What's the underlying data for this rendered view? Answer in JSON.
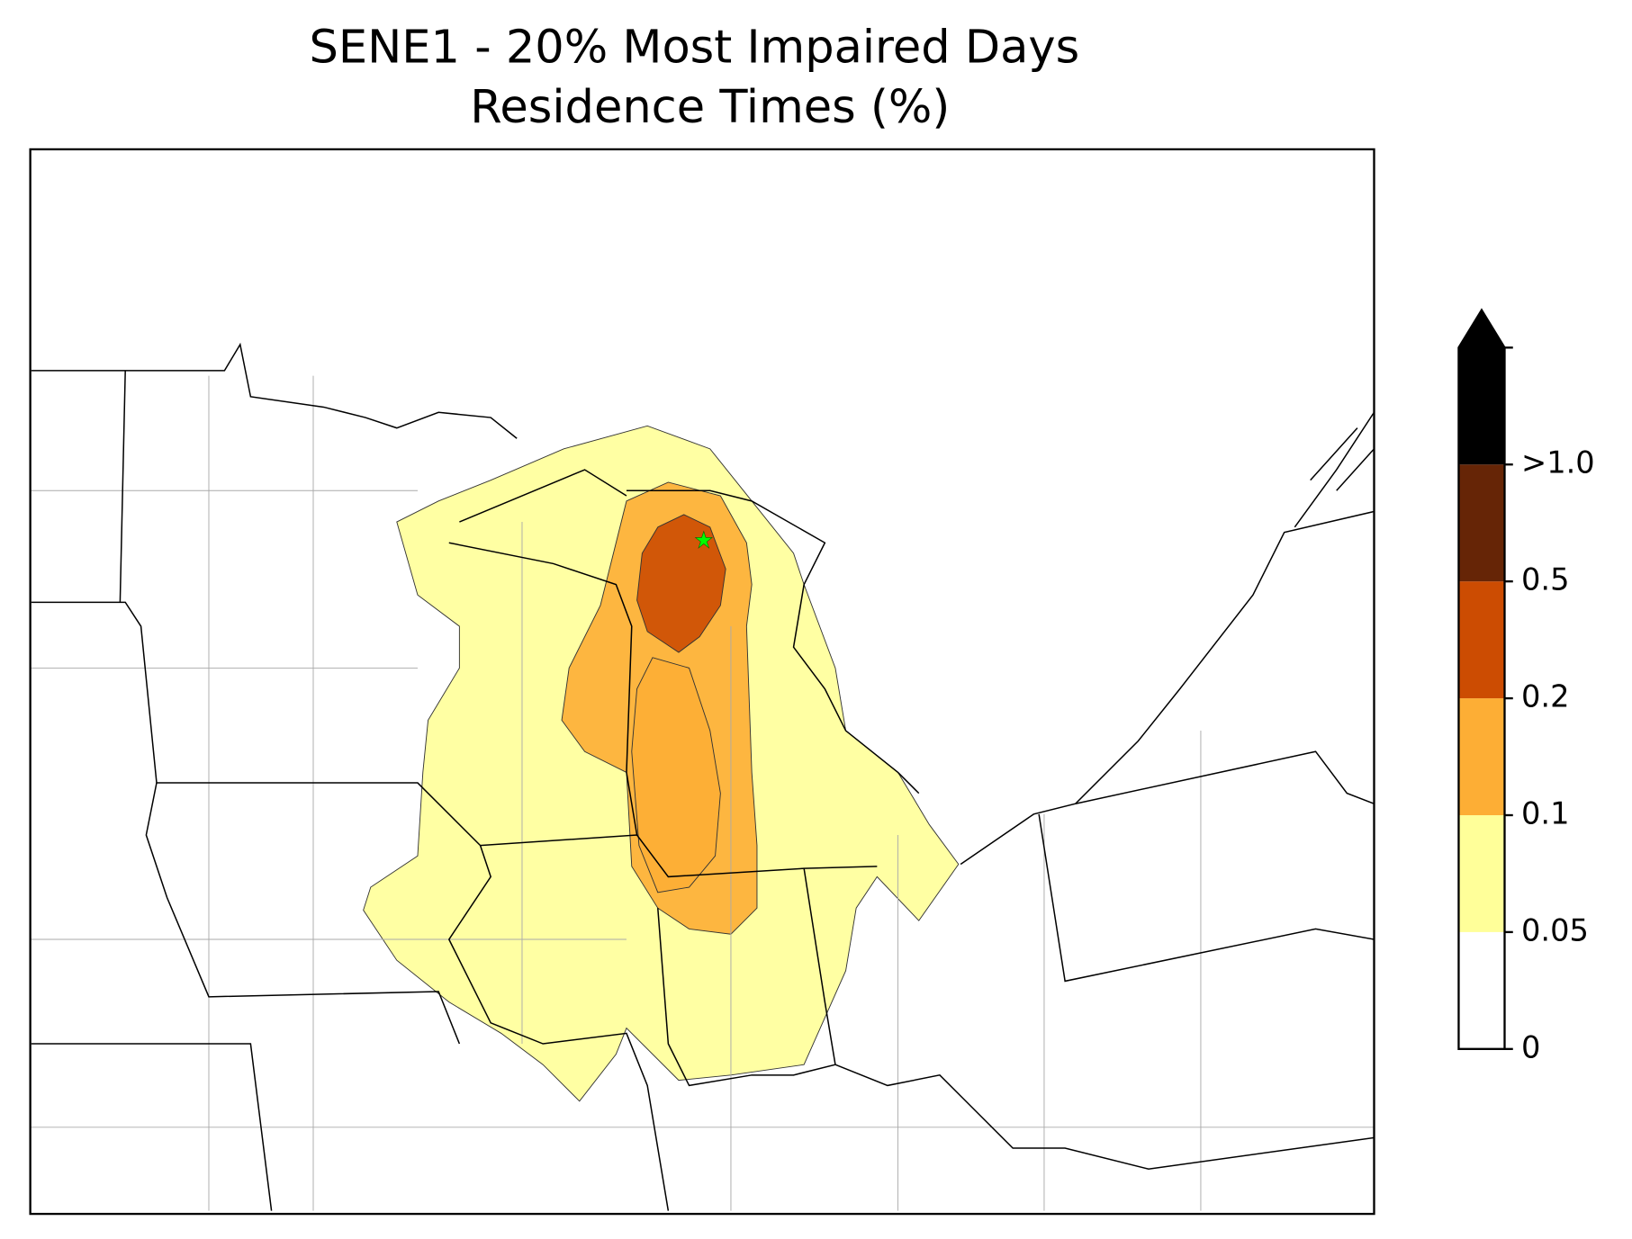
{
  "chart_data": {
    "type": "map",
    "title": "SENE1 - 20% Most Impaired Days",
    "subtitle": "Residence Times (%)",
    "colorbar": {
      "ticks": [
        0,
        0.05,
        0.1,
        0.2,
        0.5,
        {
          "value": 1.0,
          "label": ">1.0"
        }
      ],
      "colors": [
        "#ffffff",
        "#ffff99",
        "#fdae35",
        "#cc4c02",
        "#662506",
        "#000000"
      ],
      "extend": "max"
    },
    "receptor_color": "#00ff00"
  }
}
